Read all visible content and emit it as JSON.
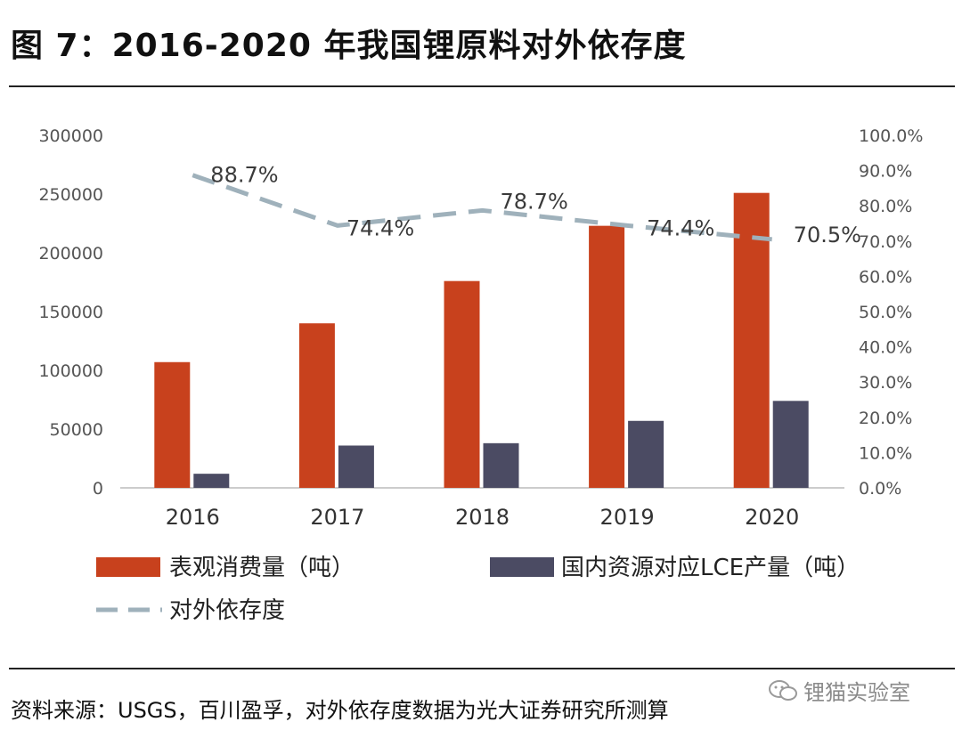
{
  "figure_title": "图 7：2016-2020 年我国锂原料对外依存度",
  "source_note": "资料来源：USGS，百川盈孚，对外依存度数据为光大证券研究所测算",
  "watermark": "锂猫实验室",
  "colors": {
    "consumption": "#c8411d",
    "production": "#4b4b63",
    "dependency": "#9fb1bb",
    "axis": "#bbbbbb",
    "text": "#555555"
  },
  "chart_data": {
    "type": "bar",
    "title": "2016-2020 年我国锂原料对外依存度",
    "categories": [
      "2016",
      "2017",
      "2018",
      "2019",
      "2020"
    ],
    "series": [
      {
        "name": "表观消费量（吨）",
        "type": "bar",
        "axis": "left",
        "values": [
          107000,
          140000,
          176000,
          223000,
          251000
        ]
      },
      {
        "name": "国内资源对应LCE产量（吨）",
        "type": "bar",
        "axis": "left",
        "values": [
          12000,
          36000,
          38000,
          57000,
          74000
        ]
      },
      {
        "name": "对外依存度",
        "type": "line",
        "axis": "right",
        "style": "dashed",
        "values": [
          88.7,
          74.4,
          78.7,
          74.4,
          70.5
        ],
        "labels": [
          "88.7%",
          "74.4%",
          "78.7%",
          "74.4%",
          "70.5%"
        ]
      }
    ],
    "y_left": {
      "min": 0,
      "max": 300000,
      "ticks": [
        "0",
        "50000",
        "100000",
        "150000",
        "200000",
        "250000",
        "300000"
      ]
    },
    "y_right": {
      "min": 0,
      "max": 100,
      "ticks": [
        "0.0%",
        "10.0%",
        "20.0%",
        "30.0%",
        "40.0%",
        "50.0%",
        "60.0%",
        "70.0%",
        "80.0%",
        "90.0%",
        "100.0%"
      ]
    },
    "grid": false,
    "legend": {
      "position": "bottom",
      "entries": [
        "表观消费量（吨）",
        "国内资源对应LCE产量（吨）",
        "对外依存度"
      ]
    }
  }
}
